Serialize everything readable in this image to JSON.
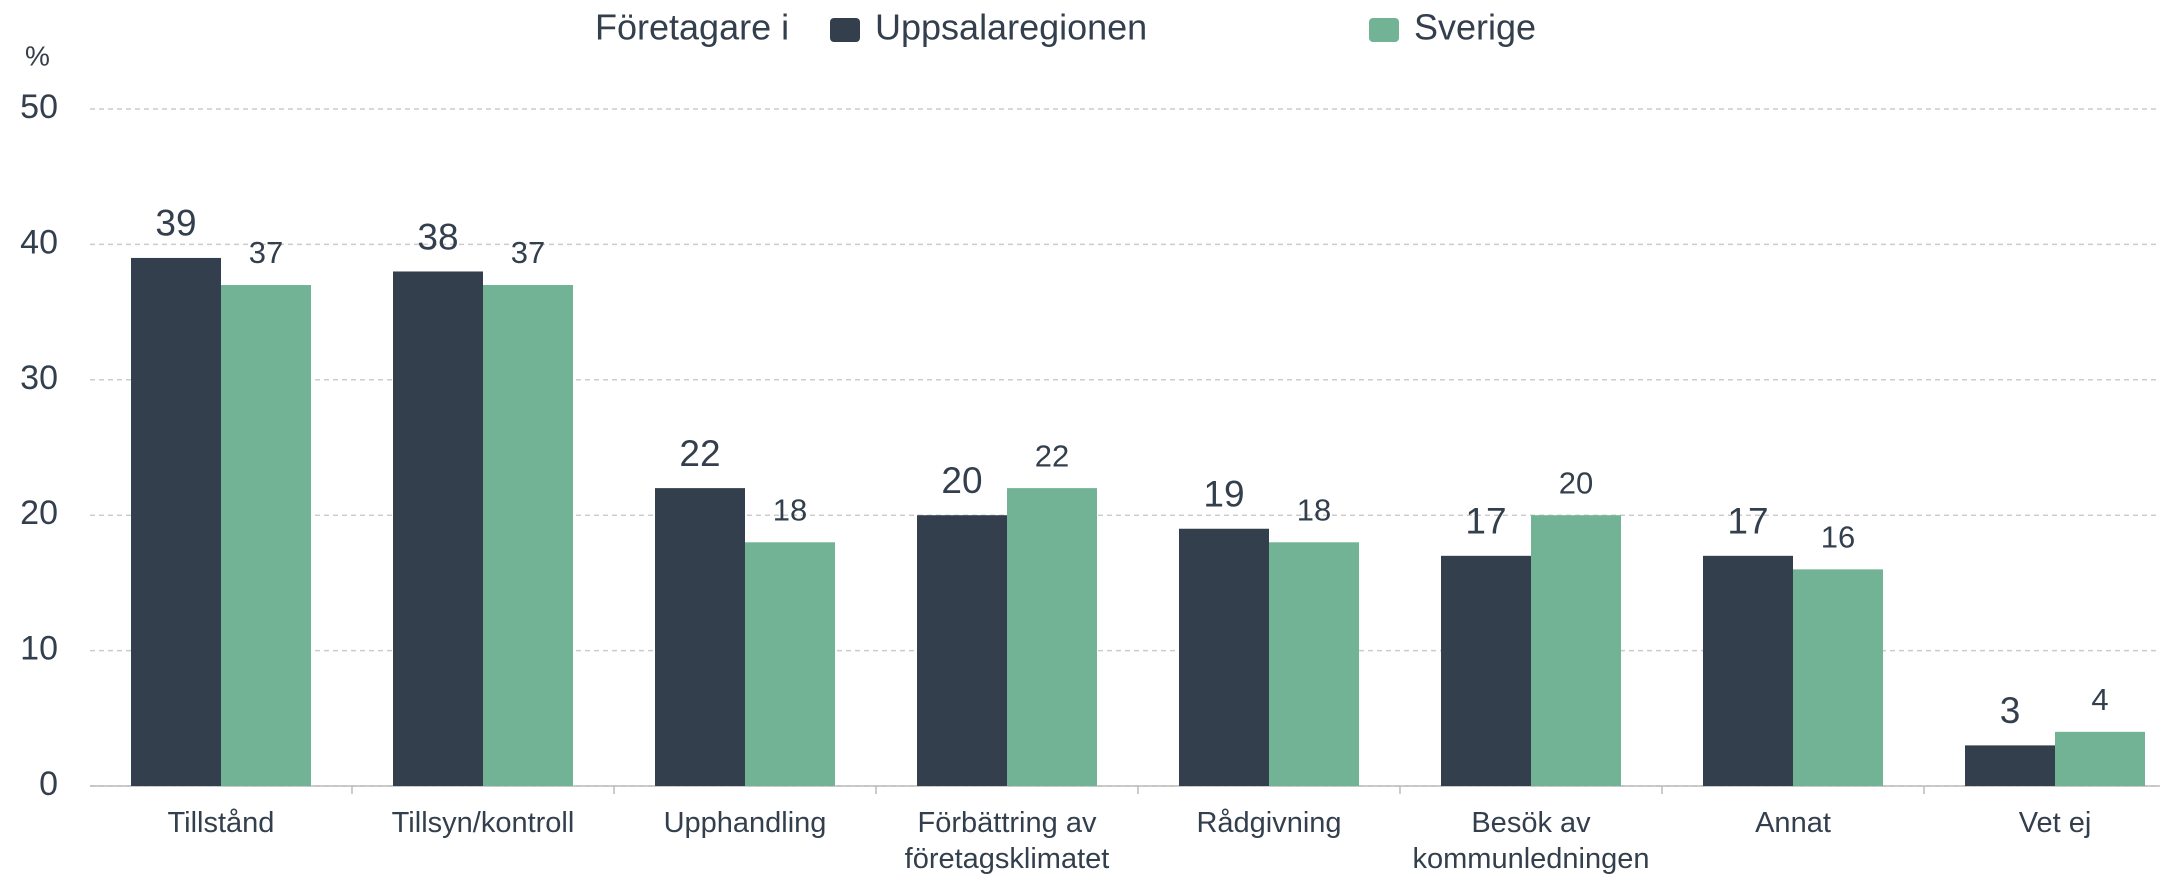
{
  "chart_data": {
    "type": "bar",
    "y_axis_label": "%",
    "legend_title": "Företagare i",
    "categories": [
      "Tillstånd",
      "Tillsyn/kontroll",
      "Upphandling",
      "Förbättring av företagsklimatet",
      "Rådgivning",
      "Besök av kommunledningen",
      "Annat",
      "Vet ej"
    ],
    "series": [
      {
        "name": "Uppsalaregionen",
        "color": "#333f4d",
        "values": [
          39,
          38,
          22,
          20,
          19,
          17,
          17,
          3
        ]
      },
      {
        "name": "Sverige",
        "color": "#72b396",
        "values": [
          37,
          37,
          18,
          22,
          18,
          20,
          16,
          4
        ]
      }
    ],
    "ylim": [
      0,
      50
    ],
    "yticks": [
      0,
      10,
      20,
      30,
      40,
      50
    ],
    "grid": true,
    "legend": "top"
  }
}
